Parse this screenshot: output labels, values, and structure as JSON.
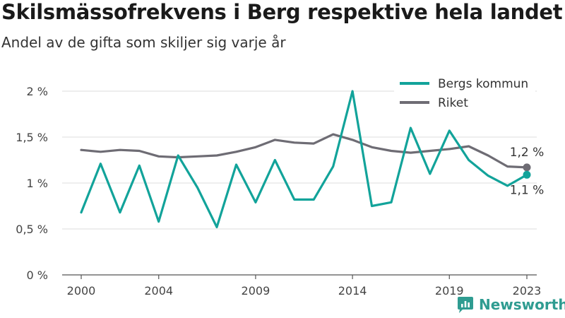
{
  "title": "Skilsmässofrekvens i Berg respektive hela landet",
  "subtitle": "Andel av de gifta som skiljer sig varje år",
  "brand": "Newsworthy",
  "colors": {
    "berg": "#12a39a",
    "riket": "#6e6c74",
    "grid": "#dcdcdc",
    "axis": "#555555",
    "brand": "#2f9c91"
  },
  "chart_data": {
    "type": "line",
    "x": [
      2000,
      2001,
      2002,
      2003,
      2004,
      2005,
      2006,
      2007,
      2008,
      2009,
      2010,
      2011,
      2012,
      2013,
      2014,
      2015,
      2016,
      2017,
      2018,
      2019,
      2020,
      2021,
      2022,
      2023
    ],
    "x_tick_values": [
      2000,
      2004,
      2009,
      2014,
      2019,
      2023
    ],
    "x_tick_labels": [
      "2000",
      "2004",
      "2009",
      "2014",
      "2019",
      "2023"
    ],
    "ylim": [
      0,
      2
    ],
    "y_tick_values": [
      0,
      0.5,
      1,
      1.5,
      2
    ],
    "y_tick_labels": [
      "0 %",
      "0,5 %",
      "1 %",
      "1,5 %",
      "2 %"
    ],
    "grid": true,
    "legend_position": "top-right",
    "series": [
      {
        "name": "Bergs kommun",
        "color": "#12a39a",
        "values": [
          0.68,
          1.21,
          0.68,
          1.19,
          0.58,
          1.3,
          0.95,
          0.52,
          1.2,
          0.79,
          1.25,
          0.82,
          0.82,
          1.18,
          2.0,
          0.75,
          0.79,
          1.6,
          1.1,
          1.57,
          1.25,
          1.08,
          0.97,
          1.09
        ],
        "end_label": "1,1 %"
      },
      {
        "name": "Riket",
        "color": "#6e6c74",
        "values": [
          1.36,
          1.34,
          1.36,
          1.35,
          1.29,
          1.28,
          1.29,
          1.3,
          1.34,
          1.39,
          1.47,
          1.44,
          1.43,
          1.53,
          1.47,
          1.39,
          1.35,
          1.33,
          1.35,
          1.37,
          1.4,
          1.3,
          1.18,
          1.17
        ],
        "end_label": "1,2 %"
      }
    ]
  }
}
